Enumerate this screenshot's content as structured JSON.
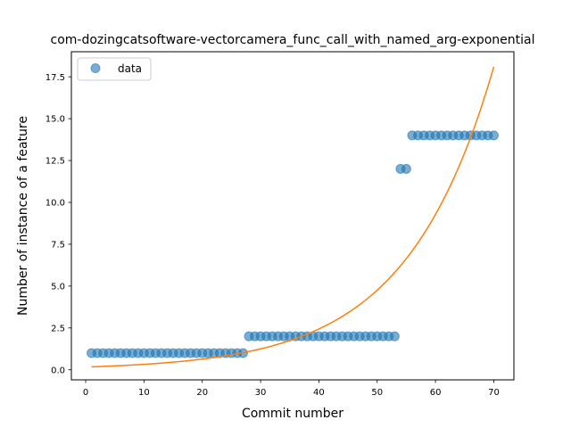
{
  "chart_data": {
    "type": "scatter",
    "title": "com-dozingcatsoftware-vectorcamera_func_call_with_named_arg-exponential",
    "xlabel": "Commit number",
    "ylabel": "Number of instance of a feature",
    "xlim": [
      -2.45,
      73.45
    ],
    "ylim": [
      -0.6,
      19.0
    ],
    "xticks": [
      0,
      10,
      20,
      30,
      40,
      50,
      60,
      70
    ],
    "yticks": [
      0.0,
      2.5,
      5.0,
      7.5,
      10.0,
      12.5,
      15.0,
      17.5
    ],
    "ytick_labels": [
      "0.0",
      "2.5",
      "5.0",
      "7.5",
      "10.0",
      "12.5",
      "15.0",
      "17.5"
    ],
    "grid": false,
    "legend": {
      "position": "upper-left",
      "entries": [
        "data"
      ]
    },
    "series": [
      {
        "name": "data",
        "kind": "points",
        "color": "#1f77b4",
        "x": [
          1,
          2,
          3,
          4,
          5,
          6,
          7,
          8,
          9,
          10,
          11,
          12,
          13,
          14,
          15,
          16,
          17,
          18,
          19,
          20,
          21,
          22,
          23,
          24,
          25,
          26,
          27,
          28,
          29,
          30,
          31,
          32,
          33,
          34,
          35,
          36,
          37,
          38,
          39,
          40,
          41,
          42,
          43,
          44,
          45,
          46,
          47,
          48,
          49,
          50,
          51,
          52,
          53,
          54,
          55,
          56,
          57,
          58,
          59,
          60,
          61,
          62,
          63,
          64,
          65,
          66,
          67,
          68,
          69,
          70
        ],
        "y": [
          1,
          1,
          1,
          1,
          1,
          1,
          1,
          1,
          1,
          1,
          1,
          1,
          1,
          1,
          1,
          1,
          1,
          1,
          1,
          1,
          1,
          1,
          1,
          1,
          1,
          1,
          1,
          2,
          2,
          2,
          2,
          2,
          2,
          2,
          2,
          2,
          2,
          2,
          2,
          2,
          2,
          2,
          2,
          2,
          2,
          2,
          2,
          2,
          2,
          2,
          2,
          2,
          2,
          12,
          12,
          14,
          14,
          14,
          14,
          14,
          14,
          14,
          14,
          14,
          14,
          14,
          14,
          14,
          14,
          14
        ]
      },
      {
        "kind": "exponential-fit",
        "color": "#ff7f0e",
        "x_range": [
          1,
          70
        ],
        "start_value": 0.18,
        "end_value": 18.1
      }
    ]
  }
}
